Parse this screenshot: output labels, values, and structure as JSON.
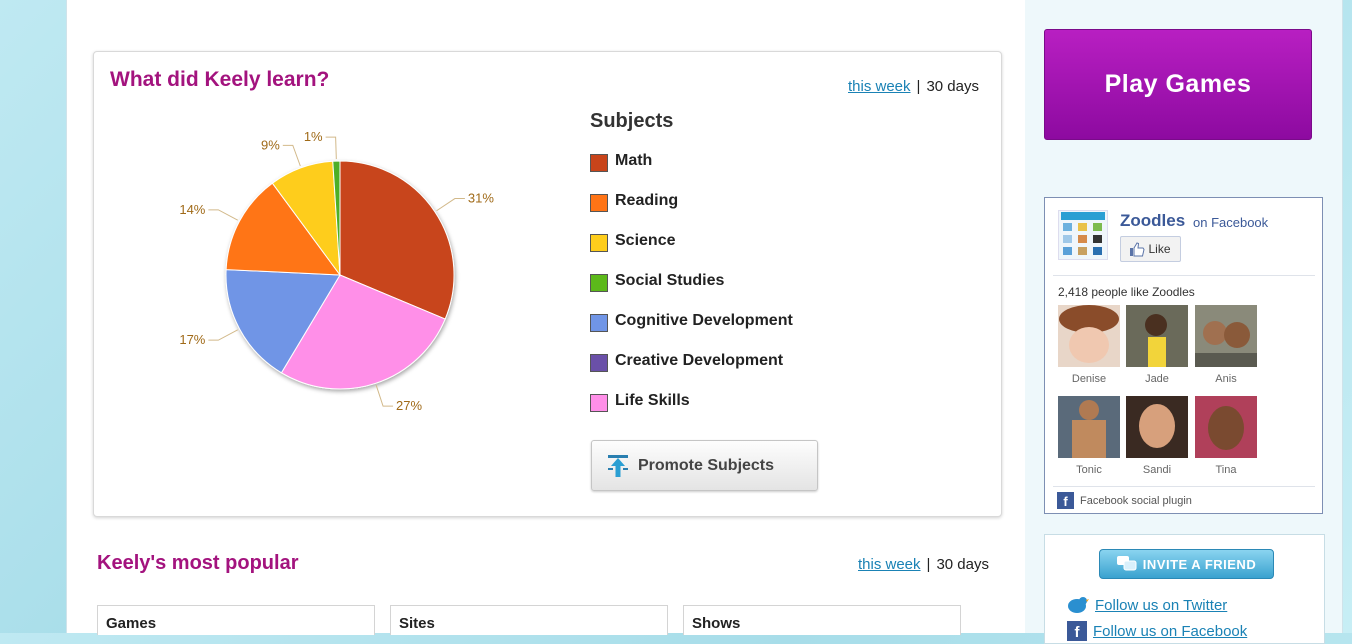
{
  "learn_card": {
    "title": "What did Keely learn?",
    "range": {
      "this_week": "this week",
      "separator": "|",
      "thirty_days": "30 days"
    }
  },
  "chart_data": {
    "type": "pie",
    "legend_title": "Subjects",
    "slices": [
      {
        "label": "Math",
        "value": 31,
        "color": "#c8441a"
      },
      {
        "label": "Life Skills",
        "value": 27,
        "color": "#ff8fe8"
      },
      {
        "label": "Cognitive Development",
        "value": 17,
        "color": "#7095e6"
      },
      {
        "label": "Reading",
        "value": 14,
        "color": "#ff7416"
      },
      {
        "label": "Science",
        "value": 9,
        "color": "#fecd1c"
      },
      {
        "label": "Social Studies",
        "value": 1,
        "color": "#4daf25"
      }
    ],
    "slice_labels": [
      "31%",
      "27%",
      "17%",
      "14%",
      "9%",
      "1%"
    ],
    "legend": [
      {
        "label": "Math",
        "color": "#c8441a"
      },
      {
        "label": "Reading",
        "color": "#ff7416"
      },
      {
        "label": "Science",
        "color": "#fecd1c"
      },
      {
        "label": "Social Studies",
        "color": "#5cb91a"
      },
      {
        "label": "Cognitive Development",
        "color": "#7095e6"
      },
      {
        "label": "Creative Development",
        "color": "#6a50a8"
      },
      {
        "label": "Life Skills",
        "color": "#ff8fe8"
      }
    ]
  },
  "promote_button": {
    "label": "Promote Subjects",
    "icon": "upload-arrow-icon"
  },
  "popular": {
    "title": "Keely's most popular",
    "range": {
      "this_week": "this week",
      "separator": "|",
      "thirty_days": "30 days"
    },
    "columns": [
      "Games",
      "Sites",
      "Shows"
    ]
  },
  "sidebar": {
    "play_button": "Play Games",
    "facebook": {
      "name": "Zoodles",
      "on_label": "on Facebook",
      "like_label": "Like",
      "count_text": "2,418 people like Zoodles",
      "fans": [
        "Denise",
        "Jade",
        "Anis",
        "Tonic",
        "Sandi",
        "Tina"
      ],
      "footer": "Facebook social plugin"
    },
    "invite_label": "INVITE A FRIEND",
    "follow_twitter": "Follow us on Twitter",
    "follow_facebook": "Follow us on Facebook"
  },
  "colors": {
    "brand_magenta": "#a3137e",
    "play_purple": "#9f12b3",
    "link_blue": "#1a82b5",
    "facebook_blue": "#3b5998"
  }
}
